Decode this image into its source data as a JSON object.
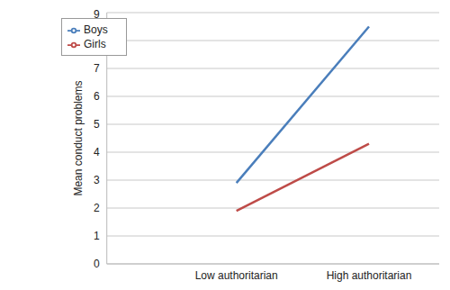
{
  "chart_data": {
    "type": "line",
    "y_label": "Mean conduct problems",
    "categories": [
      "Low authoritarian",
      "High authoritarian"
    ],
    "series": [
      {
        "name": "Boys",
        "color": "#4a7ebb",
        "values": [
          2.9,
          8.5
        ]
      },
      {
        "name": "Girls",
        "color": "#be4b48",
        "values": [
          1.9,
          4.3
        ]
      }
    ],
    "ylim": [
      0,
      9
    ],
    "yticks": [
      0,
      1,
      2,
      3,
      4,
      5,
      6,
      7,
      8,
      9
    ],
    "grid": true,
    "legend": "upper left"
  }
}
